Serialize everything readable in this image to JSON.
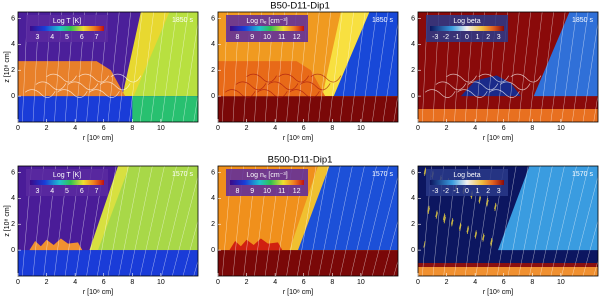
{
  "figure": {
    "xlabel": "r [10⁸ cm]",
    "ylabel": "z [10⁸ cm]",
    "xlim": [
      0,
      12.6
    ],
    "ylim": [
      -2,
      6.5
    ],
    "xticks": [
      0,
      2,
      4,
      6,
      8,
      10
    ],
    "yticks": [
      0,
      2,
      4,
      6
    ],
    "rows": [
      {
        "title": "B50-D11-Dip1",
        "panels": [
          {
            "time": "1850 s",
            "colorbar": {
              "label": "Log T [K]",
              "ticks": [
                3,
                4,
                5,
                6,
                7
              ]
            }
          },
          {
            "time": "1850 s",
            "colorbar": {
              "label": "Log nₑ [cm⁻³]",
              "ticks": [
                8,
                9,
                10,
                11,
                12
              ]
            }
          },
          {
            "time": "1850 s",
            "colorbar": {
              "label": "Log beta",
              "ticks": [
                -3,
                -2,
                -1,
                0,
                1,
                2,
                3
              ]
            }
          }
        ]
      },
      {
        "title": "B500-D11-Dip1",
        "panels": [
          {
            "time": "1570 s",
            "colorbar": {
              "label": "Log T [K]",
              "ticks": [
                3,
                4,
                5,
                6,
                7
              ]
            }
          },
          {
            "time": "1570 s",
            "colorbar": {
              "label": "Log nₑ [cm⁻³]",
              "ticks": [
                8,
                9,
                10,
                11,
                12
              ]
            }
          },
          {
            "time": "1570 s",
            "colorbar": {
              "label": "Log beta",
              "ticks": [
                -3,
                -2,
                -1,
                0,
                1,
                2,
                3
              ]
            }
          }
        ]
      }
    ]
  }
}
